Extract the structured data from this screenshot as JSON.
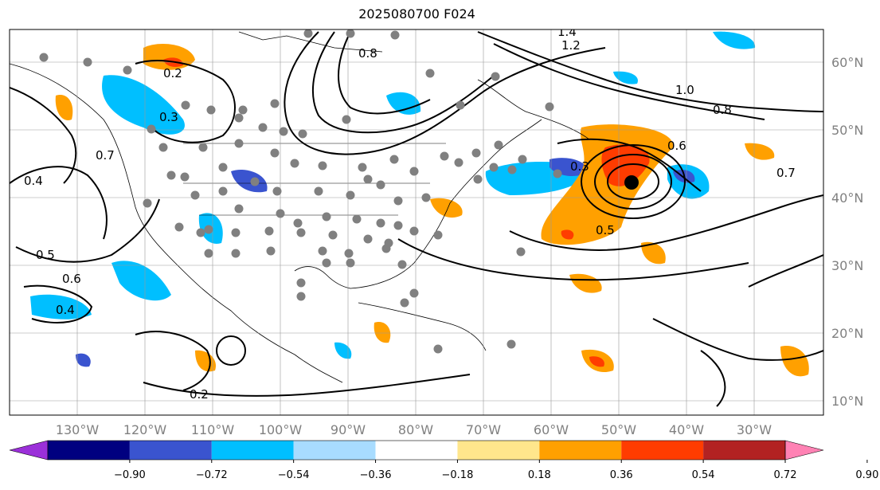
{
  "title": "2025080700 F024",
  "map": {
    "lon_labels": [
      "130°W",
      "120°W",
      "110°W",
      "100°W",
      "90°W",
      "80°W",
      "70°W",
      "60°W",
      "50°W",
      "40°W",
      "30°W"
    ],
    "lat_labels": [
      "60°N",
      "50°N",
      "40°N",
      "30°N",
      "20°N",
      "10°N"
    ],
    "contour_labels": [
      "0.2",
      "0.3",
      "0.4",
      "0.5",
      "0.6",
      "0.7",
      "0.8",
      "1.0",
      "1.2",
      "1.4",
      "0.6",
      "0.7",
      "0.8",
      "0.3",
      "0.5",
      "0.4",
      "0.2"
    ],
    "colors": {
      "neg_strong": "#1e3cc8",
      "neg_mid": "#00b4f0",
      "pos_mid": "#ffa000",
      "pos_strong": "#ff3c00",
      "station": "#808080",
      "center": "#000000"
    }
  },
  "colorbar": {
    "tick_labels": [
      "−0.90",
      "−0.72",
      "−0.54",
      "−0.36",
      "−0.18",
      "0.18",
      "0.36",
      "0.54",
      "0.72",
      "0.90"
    ],
    "colors": [
      "#9b30d9",
      "#000080",
      "#3a54cf",
      "#00bfff",
      "#a8dcff",
      "#ffffff",
      "#ffe68c",
      "#ffa000",
      "#ff3c00",
      "#b22222",
      "#ff82b4"
    ]
  }
}
